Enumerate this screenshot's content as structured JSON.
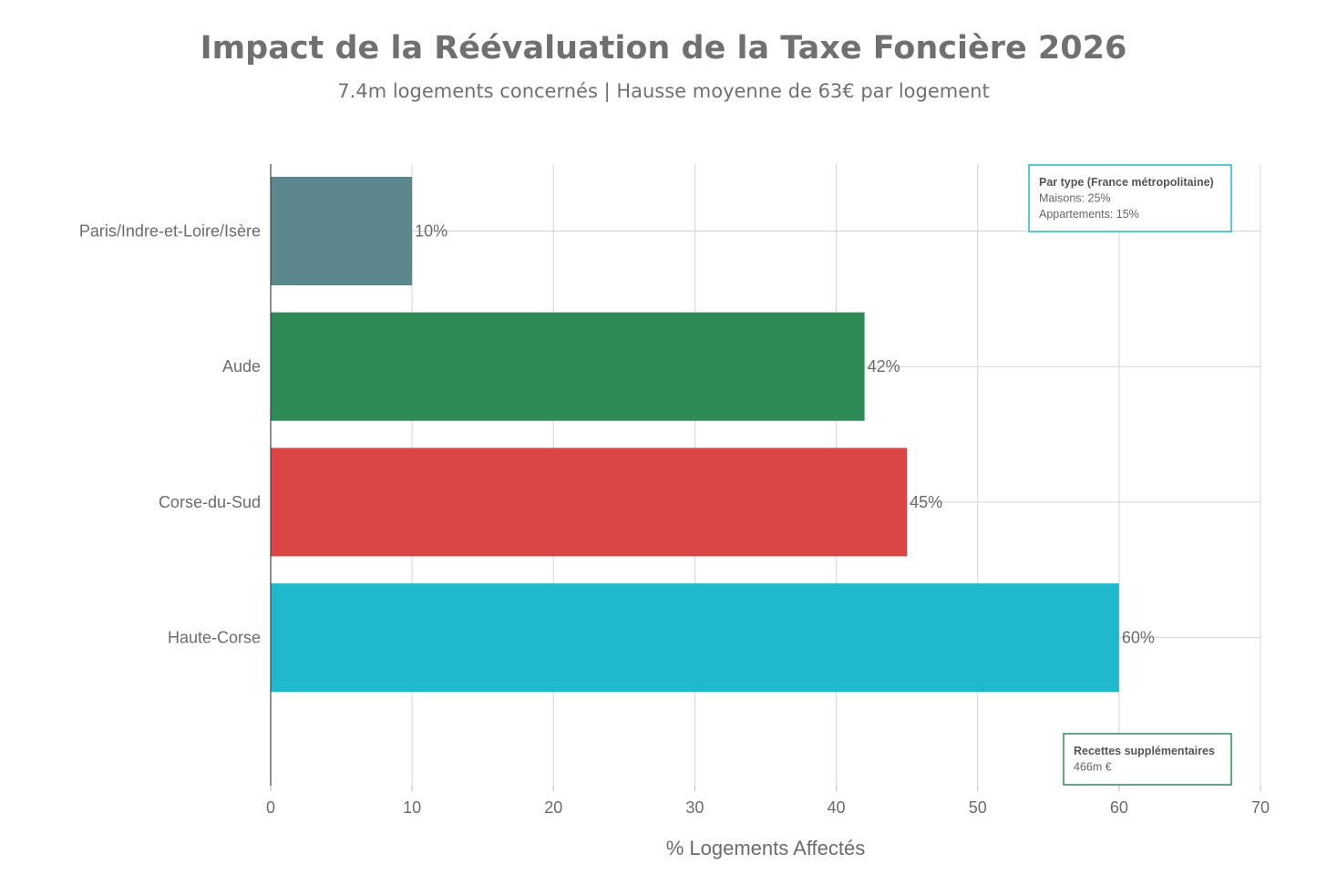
{
  "chart_data": {
    "type": "bar",
    "orientation": "horizontal",
    "title": "Impact de la Réévaluation de la Taxe Foncière 2026",
    "subtitle": "7.4m logements concernés | Hausse moyenne de 63€ par logement",
    "xlabel": "% Logements Affectés",
    "ylabel": "",
    "xlim": [
      0,
      70
    ],
    "xticks": [
      0,
      10,
      20,
      30,
      40,
      50,
      60,
      70
    ],
    "grid": true,
    "categories": [
      "Paris/Indre-et-Loire/Isère",
      "Aude",
      "Corse-du-Sud",
      "Haute-Corse"
    ],
    "values": [
      10,
      42,
      45,
      60
    ],
    "data_labels": [
      "10%",
      "42%",
      "45%",
      "60%"
    ],
    "colors": [
      "#5c878c",
      "#2e8b57",
      "#db4545",
      "#20b8cc"
    ],
    "annotations": [
      {
        "position": "top-right",
        "border_color": "#20b8cc",
        "title": "Par type (France métropolitaine)",
        "lines": [
          "Maisons: 25%",
          "Appartements: 15%"
        ]
      },
      {
        "position": "bottom-right",
        "border_color": "#2e8b57",
        "title": "Recettes supplémentaires",
        "lines": [
          "466m €"
        ]
      }
    ]
  }
}
